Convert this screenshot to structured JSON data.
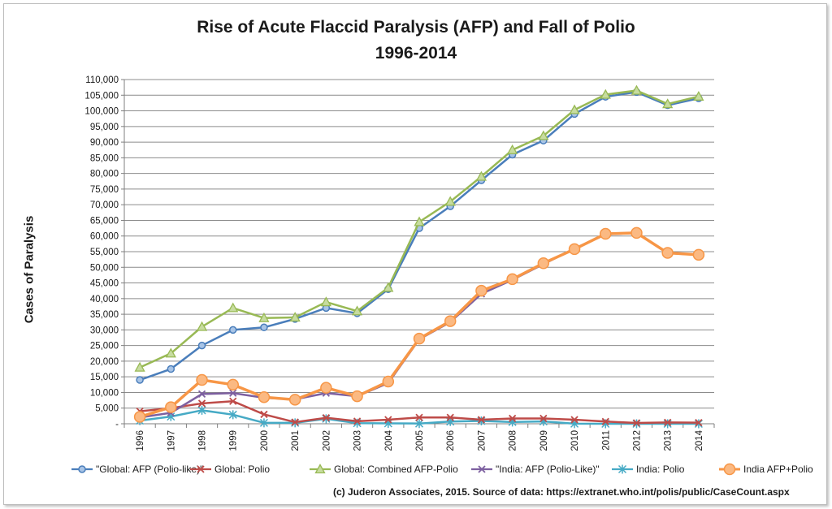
{
  "chart_data": {
    "type": "line",
    "title": "Rise of Acute Flaccid Paralysis (AFP) and Fall of Polio",
    "subtitle": "1996-2014",
    "ylabel": "Cases of Paralysis",
    "xlabel": "",
    "ylim": [
      0,
      110000
    ],
    "ytick_labels": [
      "-",
      "5,000",
      "10,000",
      "15,000",
      "20,000",
      "25,000",
      "30,000",
      "35,000",
      "40,000",
      "45,000",
      "50,000",
      "55,000",
      "60,000",
      "65,000",
      "70,000",
      "75,000",
      "80,000",
      "85,000",
      "90,000",
      "95,000",
      "100,000",
      "105,000",
      "110,000"
    ],
    "grid": true,
    "legend_position": "bottom",
    "categories": [
      "1996",
      "1997",
      "1998",
      "1999",
      "2000",
      "2001",
      "2002",
      "2003",
      "2004",
      "2005",
      "2006",
      "2007",
      "2008",
      "2009",
      "2010",
      "2011",
      "2012",
      "2013",
      "2014"
    ],
    "series": [
      {
        "name": "\"Global: AFP (Polio-like)\"",
        "color": "#4a7ebb",
        "marker": "circle",
        "values": [
          14000,
          17500,
          25000,
          30000,
          30800,
          33500,
          37000,
          35300,
          43000,
          62500,
          69500,
          77800,
          86000,
          90500,
          99000,
          104500,
          106000,
          101800,
          104000
        ]
      },
      {
        "name": "Global: Polio",
        "color": "#be4b48",
        "marker": "x",
        "values": [
          4000,
          5000,
          6500,
          7200,
          3000,
          500,
          1900,
          800,
          1300,
          2000,
          2000,
          1300,
          1700,
          1700,
          1300,
          700,
          250,
          420,
          360
        ]
      },
      {
        "name": "Global: Combined AFP-Polio",
        "color": "#98b954",
        "marker": "triangle",
        "values": [
          18000,
          22500,
          31000,
          37000,
          33800,
          34000,
          38900,
          36000,
          43500,
          64500,
          71000,
          79000,
          87500,
          92000,
          100300,
          105200,
          106500,
          102200,
          104600
        ]
      },
      {
        "name": "\"India: AFP (Polio-Like)\"",
        "color": "#7d60a0",
        "marker": "x",
        "values": [
          2000,
          3500,
          9500,
          9800,
          8300,
          7800,
          9800,
          8800,
          13000,
          27000,
          32500,
          41500,
          46000,
          51000,
          56000,
          60500,
          61000,
          54500,
          54000
        ]
      },
      {
        "name": "India: Polio",
        "color": "#46aac5",
        "marker": "star",
        "values": [
          1000,
          2300,
          4300,
          2900,
          300,
          300,
          1600,
          200,
          130,
          80,
          700,
          900,
          560,
          740,
          40,
          1,
          0,
          0,
          0
        ]
      },
      {
        "name": "India AFP+Polio",
        "color": "#f79646",
        "marker": "circle-large",
        "values": [
          2200,
          5300,
          14000,
          12500,
          8500,
          7700,
          11500,
          8800,
          13500,
          27200,
          32800,
          42500,
          46200,
          51300,
          55800,
          60700,
          61000,
          54600,
          54000
        ]
      }
    ]
  },
  "source_note": "(c) Juderon Associates, 2015. Source of data: https://extranet.who.int/polis/public/CaseCount.aspx"
}
